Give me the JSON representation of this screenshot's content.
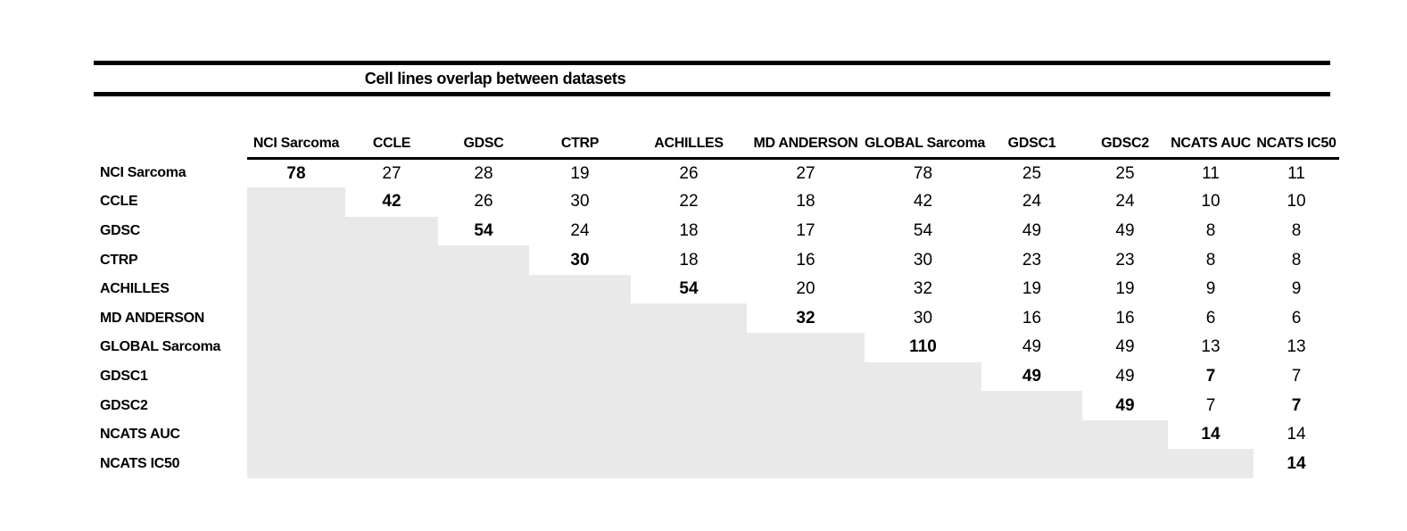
{
  "title": "Cell lines overlap between datasets",
  "datasets": [
    "NCI Sarcoma",
    "CCLE",
    "GDSC",
    "CTRP",
    "ACHILLES",
    "MD ANDERSON",
    "GLOBAL Sarcoma",
    "GDSC1",
    "GDSC2",
    "NCATS AUC",
    "NCATS IC50"
  ],
  "colors": {
    "background": "#ffffff",
    "text": "#000000",
    "rule": "#000000",
    "shaded_cell": "#e9e9e9"
  },
  "chart_data": {
    "type": "table",
    "title": "Cell lines overlap between datasets",
    "column_labels": [
      "NCI Sarcoma",
      "CCLE",
      "GDSC",
      "CTRP",
      "ACHILLES",
      "MD ANDERSON",
      "GLOBAL Sarcoma",
      "GDSC1",
      "GDSC2",
      "NCATS AUC",
      "NCATS IC50"
    ],
    "row_labels": [
      "NCI Sarcoma",
      "CCLE",
      "GDSC",
      "CTRP",
      "ACHILLES",
      "MD ANDERSON",
      "GLOBAL Sarcoma",
      "GDSC1",
      "GDSC2",
      "NCATS AUC",
      "NCATS IC50"
    ],
    "matrix": [
      [
        78,
        27,
        28,
        19,
        26,
        27,
        78,
        25,
        25,
        11,
        11
      ],
      [
        null,
        42,
        26,
        30,
        22,
        18,
        42,
        24,
        24,
        10,
        10
      ],
      [
        null,
        null,
        54,
        24,
        18,
        17,
        54,
        49,
        49,
        8,
        8
      ],
      [
        null,
        null,
        null,
        30,
        18,
        16,
        30,
        23,
        23,
        8,
        8
      ],
      [
        null,
        null,
        null,
        null,
        54,
        20,
        32,
        19,
        19,
        9,
        9
      ],
      [
        null,
        null,
        null,
        null,
        null,
        32,
        30,
        16,
        16,
        6,
        6
      ],
      [
        null,
        null,
        null,
        null,
        null,
        null,
        110,
        49,
        49,
        13,
        13
      ],
      [
        null,
        null,
        null,
        null,
        null,
        null,
        null,
        49,
        49,
        7,
        7
      ],
      [
        null,
        null,
        null,
        null,
        null,
        null,
        null,
        null,
        49,
        7,
        7
      ],
      [
        null,
        null,
        null,
        null,
        null,
        null,
        null,
        null,
        null,
        14,
        14
      ],
      [
        null,
        null,
        null,
        null,
        null,
        null,
        null,
        null,
        null,
        null,
        14
      ]
    ],
    "bold_cells": [
      [
        0,
        0
      ],
      [
        1,
        1
      ],
      [
        2,
        2
      ],
      [
        3,
        3
      ],
      [
        4,
        4
      ],
      [
        5,
        5
      ],
      [
        6,
        6
      ],
      [
        7,
        7
      ],
      [
        7,
        9
      ],
      [
        8,
        8
      ],
      [
        8,
        10
      ],
      [
        9,
        9
      ],
      [
        10,
        10
      ]
    ],
    "shaded_region": "below-diagonal",
    "layout_hints": {
      "grid": false,
      "legend": "none",
      "lower_triangle": "shaded-gray-steps"
    }
  }
}
